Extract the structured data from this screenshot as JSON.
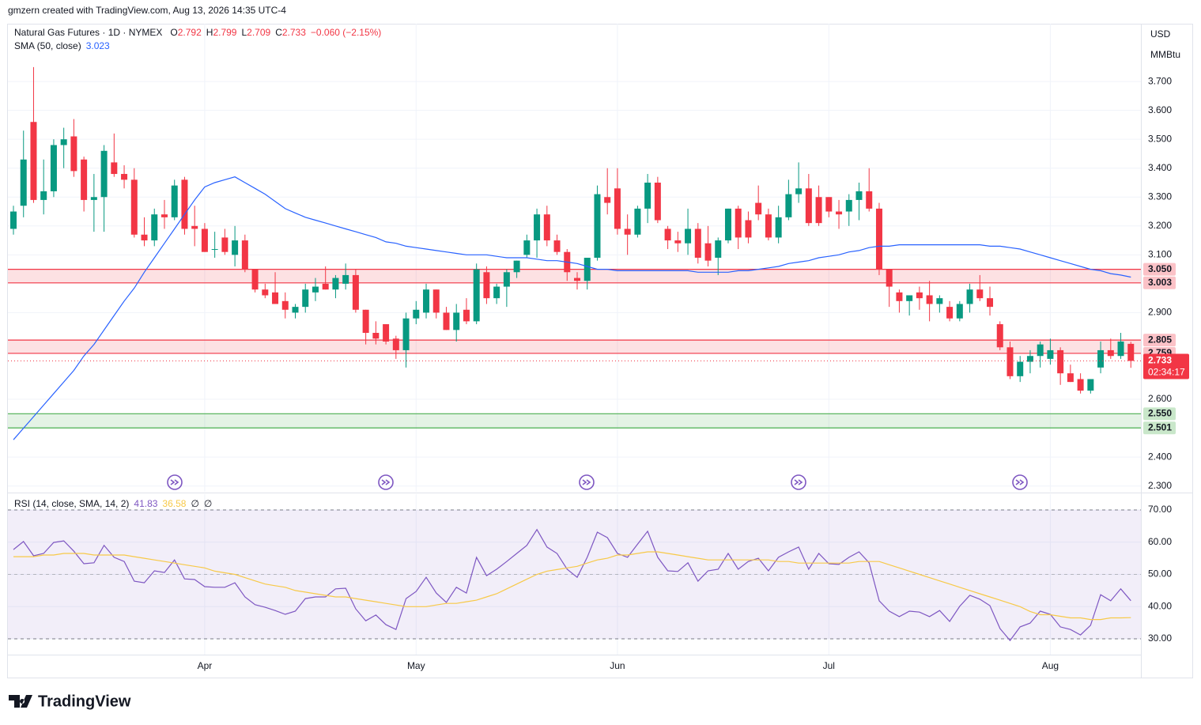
{
  "header": {
    "credit": "gmzern created with TradingView.com, Aug 13, 2026 14:35 UTC-4",
    "symbol": "Natural Gas Futures · 1D · NYMEX",
    "ohlc_keys": [
      "O",
      "H",
      "L",
      "C"
    ],
    "change": "−0.060 (−2.15%)",
    "currency": "USD",
    "unit": "MMBtu",
    "countdown": "02:34:17"
  },
  "footer": {
    "brand": "TradingView"
  },
  "chart_data": [
    {
      "type": "candlestick",
      "up_color": "#089981",
      "down_color": "#f23645",
      "xlim": [
        -0.55,
        112
      ],
      "xticks": [
        {
          "value": 19,
          "label": "Apr"
        },
        {
          "value": 40,
          "label": "May"
        },
        {
          "value": 60,
          "label": "Jun"
        },
        {
          "value": 81,
          "label": "Jul"
        },
        {
          "value": 103,
          "label": "Aug"
        }
      ],
      "ylim": [
        2.28,
        3.9
      ],
      "yticks": [
        {
          "value": 2.3,
          "label": "2.300"
        },
        {
          "value": 2.4,
          "label": "2.400"
        },
        {
          "value": 2.6,
          "label": "2.600"
        },
        {
          "value": 2.9,
          "label": "2.900"
        },
        {
          "value": 3.1,
          "label": "3.100"
        },
        {
          "value": 3.2,
          "label": "3.200"
        },
        {
          "value": 3.3,
          "label": "3.300"
        },
        {
          "value": 3.4,
          "label": "3.400"
        },
        {
          "value": 3.5,
          "label": "3.500"
        },
        {
          "value": 3.6,
          "label": "3.600"
        },
        {
          "value": 3.7,
          "label": "3.700"
        }
      ],
      "grid": true,
      "open": [
        3.19,
        3.27,
        3.56,
        3.29,
        3.32,
        3.48,
        3.51,
        3.43,
        3.29,
        3.3,
        3.42,
        3.38,
        3.36,
        3.17,
        3.15,
        3.24,
        3.23,
        3.36,
        3.2,
        3.19,
        3.12,
        3.16,
        3.1,
        3.15,
        3.05,
        2.98,
        2.97,
        2.94,
        2.9,
        2.92,
        2.97,
        3.0,
        2.98,
        3.0,
        3.03,
        2.91,
        2.83,
        2.86,
        2.81,
        2.77,
        2.88,
        2.9,
        2.98,
        2.9,
        2.84,
        2.91,
        2.87,
        3.04,
        2.95,
        2.99,
        3.04,
        3.1,
        3.15,
        3.24,
        3.15,
        3.11,
        3.02,
        3.01,
        3.09,
        3.3,
        3.33,
        3.19,
        3.17,
        3.26,
        3.35,
        3.19,
        3.15,
        3.14,
        3.19,
        3.14,
        3.09,
        3.15,
        3.26,
        3.22,
        3.28,
        3.24,
        3.16,
        3.23,
        3.31,
        3.33,
        3.3,
        3.3,
        3.25,
        3.25,
        3.29,
        3.32,
        3.26,
        3.05,
        2.97,
        2.94,
        2.97,
        2.96,
        2.93,
        2.92,
        2.88,
        2.93,
        2.98,
        2.95,
        2.86,
        2.78,
        2.68,
        2.73,
        2.75,
        2.74,
        2.77,
        2.69,
        2.67,
        2.63,
        2.71,
        2.77,
        2.75,
        2.792
      ],
      "high": [
        3.27,
        3.53,
        3.75,
        3.43,
        3.5,
        3.54,
        3.57,
        3.44,
        3.38,
        3.48,
        3.52,
        3.41,
        3.4,
        3.23,
        3.26,
        3.29,
        3.36,
        3.37,
        3.27,
        3.21,
        3.18,
        3.19,
        3.2,
        3.17,
        3.05,
        3.0,
        3.04,
        2.97,
        2.93,
        3.0,
        3.02,
        3.06,
        3.03,
        3.07,
        3.05,
        2.91,
        2.87,
        2.86,
        2.82,
        2.9,
        2.94,
        3.0,
        2.98,
        2.92,
        2.93,
        2.95,
        3.07,
        3.06,
        3.0,
        3.05,
        3.08,
        3.17,
        3.26,
        3.27,
        3.17,
        3.12,
        3.04,
        3.09,
        3.34,
        3.4,
        3.4,
        3.24,
        3.27,
        3.38,
        3.37,
        3.2,
        3.18,
        3.26,
        3.21,
        3.2,
        3.16,
        3.26,
        3.27,
        3.25,
        3.34,
        3.26,
        3.27,
        3.36,
        3.42,
        3.38,
        3.34,
        3.3,
        3.29,
        3.31,
        3.35,
        3.4,
        3.28,
        3.05,
        2.98,
        2.96,
        2.99,
        3.01,
        2.96,
        2.94,
        2.94,
        3.0,
        3.03,
        2.99,
        2.87,
        2.8,
        2.75,
        2.77,
        2.8,
        2.81,
        2.78,
        2.72,
        2.69,
        2.67,
        2.8,
        2.81,
        2.83,
        2.799
      ],
      "low": [
        3.17,
        3.23,
        3.28,
        3.24,
        3.3,
        3.4,
        3.37,
        3.25,
        3.18,
        3.18,
        3.37,
        3.33,
        3.16,
        3.13,
        3.13,
        3.19,
        3.22,
        3.17,
        3.13,
        3.11,
        3.09,
        3.1,
        3.06,
        3.04,
        2.97,
        2.95,
        2.93,
        2.88,
        2.88,
        2.9,
        2.94,
        2.98,
        2.95,
        2.98,
        2.9,
        2.79,
        2.79,
        2.79,
        2.74,
        2.71,
        2.86,
        2.88,
        2.88,
        2.84,
        2.8,
        2.86,
        2.86,
        2.93,
        2.93,
        2.92,
        3.02,
        3.09,
        3.09,
        3.13,
        3.1,
        3.01,
        2.98,
        2.98,
        3.08,
        3.24,
        3.17,
        3.1,
        3.16,
        3.21,
        3.21,
        3.12,
        3.11,
        3.1,
        3.07,
        3.06,
        3.03,
        3.14,
        3.12,
        3.14,
        3.22,
        3.15,
        3.14,
        3.22,
        3.28,
        3.2,
        3.2,
        3.23,
        3.19,
        3.2,
        3.22,
        3.25,
        3.03,
        2.92,
        2.9,
        2.89,
        2.91,
        2.87,
        2.9,
        2.87,
        2.87,
        2.9,
        2.94,
        2.89,
        2.77,
        2.67,
        2.66,
        2.69,
        2.71,
        2.72,
        2.65,
        2.66,
        2.62,
        2.62,
        2.69,
        2.74,
        2.74,
        2.709
      ],
      "close": [
        3.25,
        3.43,
        3.29,
        3.32,
        3.48,
        3.5,
        3.39,
        3.29,
        3.3,
        3.46,
        3.38,
        3.36,
        3.17,
        3.15,
        3.24,
        3.23,
        3.34,
        3.19,
        3.19,
        3.11,
        3.12,
        3.11,
        3.15,
        3.05,
        2.98,
        2.96,
        2.93,
        2.91,
        2.92,
        2.98,
        2.99,
        2.98,
        3.02,
        3.03,
        2.91,
        2.83,
        2.81,
        2.8,
        2.77,
        2.88,
        2.91,
        2.98,
        2.9,
        2.84,
        2.9,
        2.87,
        3.05,
        2.95,
        2.99,
        3.04,
        3.08,
        3.15,
        3.24,
        3.15,
        3.11,
        3.04,
        3.01,
        3.09,
        3.31,
        3.28,
        3.19,
        3.17,
        3.26,
        3.35,
        3.22,
        3.15,
        3.14,
        3.19,
        3.09,
        3.08,
        3.15,
        3.26,
        3.16,
        3.16,
        3.24,
        3.16,
        3.23,
        3.31,
        3.33,
        3.21,
        3.21,
        3.25,
        3.24,
        3.29,
        3.32,
        3.26,
        3.05,
        2.99,
        2.94,
        2.96,
        2.95,
        2.93,
        2.95,
        2.88,
        2.93,
        2.98,
        2.95,
        2.92,
        2.78,
        2.68,
        2.73,
        2.75,
        2.79,
        2.77,
        2.69,
        2.66,
        2.63,
        2.67,
        2.77,
        2.75,
        2.8,
        2.733
      ],
      "sma": {
        "name": "SMA (50, close)",
        "color": "#2962ff",
        "values": [
          2.46,
          2.5,
          2.54,
          2.58,
          2.62,
          2.66,
          2.7,
          2.75,
          2.79,
          2.84,
          2.89,
          2.94,
          2.985,
          3.04,
          3.09,
          3.14,
          3.19,
          3.24,
          3.29,
          3.335,
          3.35,
          3.36,
          3.37,
          3.35,
          3.33,
          3.31,
          3.285,
          3.26,
          3.245,
          3.23,
          3.22,
          3.21,
          3.2,
          3.19,
          3.18,
          3.17,
          3.16,
          3.145,
          3.14,
          3.13,
          3.125,
          3.12,
          3.115,
          3.11,
          3.105,
          3.1,
          3.1,
          3.1,
          3.095,
          3.09,
          3.09,
          3.09,
          3.085,
          3.08,
          3.08,
          3.075,
          3.07,
          3.06,
          3.05,
          3.05,
          3.045,
          3.045,
          3.045,
          3.045,
          3.045,
          3.045,
          3.045,
          3.045,
          3.04,
          3.04,
          3.04,
          3.04,
          3.045,
          3.045,
          3.05,
          3.055,
          3.06,
          3.07,
          3.075,
          3.08,
          3.09,
          3.095,
          3.1,
          3.11,
          3.115,
          3.125,
          3.13,
          3.13,
          3.135,
          3.135,
          3.135,
          3.135,
          3.135,
          3.135,
          3.135,
          3.135,
          3.135,
          3.13,
          3.13,
          3.125,
          3.12,
          3.11,
          3.1,
          3.09,
          3.08,
          3.07,
          3.06,
          3.05,
          3.045,
          3.035,
          3.03,
          3.023
        ]
      },
      "zones": [
        {
          "top": {
            "value": 3.05,
            "label": "3.050"
          },
          "bottom": {
            "value": 3.003,
            "label": "3.003"
          },
          "color": "#f23645"
        },
        {
          "top": {
            "value": 2.805,
            "label": "2.805"
          },
          "bottom": {
            "value": 2.759,
            "label": "2.759"
          },
          "color": "#f23645"
        },
        {
          "top": {
            "value": 2.55,
            "label": "2.550"
          },
          "bottom": {
            "value": 2.501,
            "label": "2.501"
          },
          "color": "#4caf50"
        }
      ]
    },
    {
      "type": "line",
      "title": "RSI (14, close, SMA, 14, 2)",
      "na_labels": [
        "∅",
        "∅"
      ],
      "ylim": [
        25.1,
        74.9
      ],
      "yticks": [
        {
          "value": 30,
          "label": "30.00"
        },
        {
          "value": 40,
          "label": "40.00"
        },
        {
          "value": 50,
          "label": "50.00"
        },
        {
          "value": 60,
          "label": "60.00"
        },
        {
          "value": 70,
          "label": "70.00"
        }
      ],
      "band": [
        30,
        70
      ],
      "series": [
        {
          "name": "RSI",
          "color": "#7e57c2",
          "values": [
            57.7,
            60.2,
            55.8,
            56.5,
            59.9,
            60.4,
            57.2,
            53.3,
            53.6,
            59.0,
            55.3,
            54.0,
            47.9,
            47.4,
            51.1,
            50.6,
            54.5,
            48.6,
            48.4,
            46.2,
            46.0,
            46.0,
            47.4,
            43.0,
            40.6,
            39.8,
            38.8,
            37.6,
            38.6,
            42.5,
            43.0,
            43.0,
            45.5,
            45.7,
            39.3,
            35.6,
            37.4,
            34.4,
            32.9,
            42.5,
            44.7,
            49.1,
            44.2,
            41.3,
            46.0,
            44.2,
            55.3,
            49.6,
            51.6,
            54.0,
            56.5,
            59.0,
            63.9,
            58.5,
            56.5,
            51.6,
            49.1,
            55.3,
            63.1,
            61.4,
            56.5,
            55.3,
            59.4,
            63.4,
            55.3,
            51.1,
            50.9,
            53.6,
            47.9,
            51.1,
            51.6,
            56.5,
            51.6,
            54.0,
            55.0,
            51.1,
            55.3,
            57.0,
            58.5,
            51.6,
            56.5,
            53.3,
            53.1,
            55.3,
            57.0,
            53.6,
            41.8,
            38.6,
            36.9,
            38.6,
            38.3,
            36.9,
            38.8,
            35.4,
            40.1,
            43.5,
            42.3,
            40.3,
            33.2,
            29.5,
            33.7,
            34.9,
            38.6,
            37.6,
            33.7,
            32.9,
            31.2,
            34.2,
            43.7,
            41.8,
            45.5,
            41.83
          ]
        },
        {
          "name": "RSI-based MA",
          "color": "#f7c948",
          "values": [
            55.5,
            55.5,
            55.5,
            56,
            56,
            56.5,
            56.5,
            56.5,
            56,
            56,
            56,
            56,
            55.5,
            55,
            54.5,
            54,
            53.5,
            53,
            52.5,
            52,
            51,
            50.5,
            50,
            49,
            48,
            47,
            46.5,
            46,
            45,
            44.5,
            44,
            43.5,
            43,
            43,
            42.5,
            42,
            41.5,
            41,
            40.5,
            40,
            40,
            40,
            40.5,
            41,
            41,
            41.5,
            42,
            43,
            44,
            45.5,
            47,
            48.5,
            50,
            51,
            51.5,
            52,
            52.5,
            53.5,
            54.5,
            55,
            56,
            56,
            56.5,
            57,
            57,
            56.5,
            56,
            55.5,
            55,
            54.5,
            54.5,
            54.5,
            54.5,
            54.5,
            54.5,
            54.5,
            54,
            54,
            53.5,
            53.5,
            53.5,
            53.5,
            53.5,
            53.5,
            54,
            54,
            54,
            53,
            52,
            51,
            50,
            49,
            48,
            47,
            46,
            45,
            44,
            43,
            42,
            41,
            40,
            38.5,
            37.5,
            37.5,
            37,
            36.5,
            36.5,
            36,
            36,
            36.5,
            36.5,
            36.58
          ]
        }
      ]
    }
  ]
}
